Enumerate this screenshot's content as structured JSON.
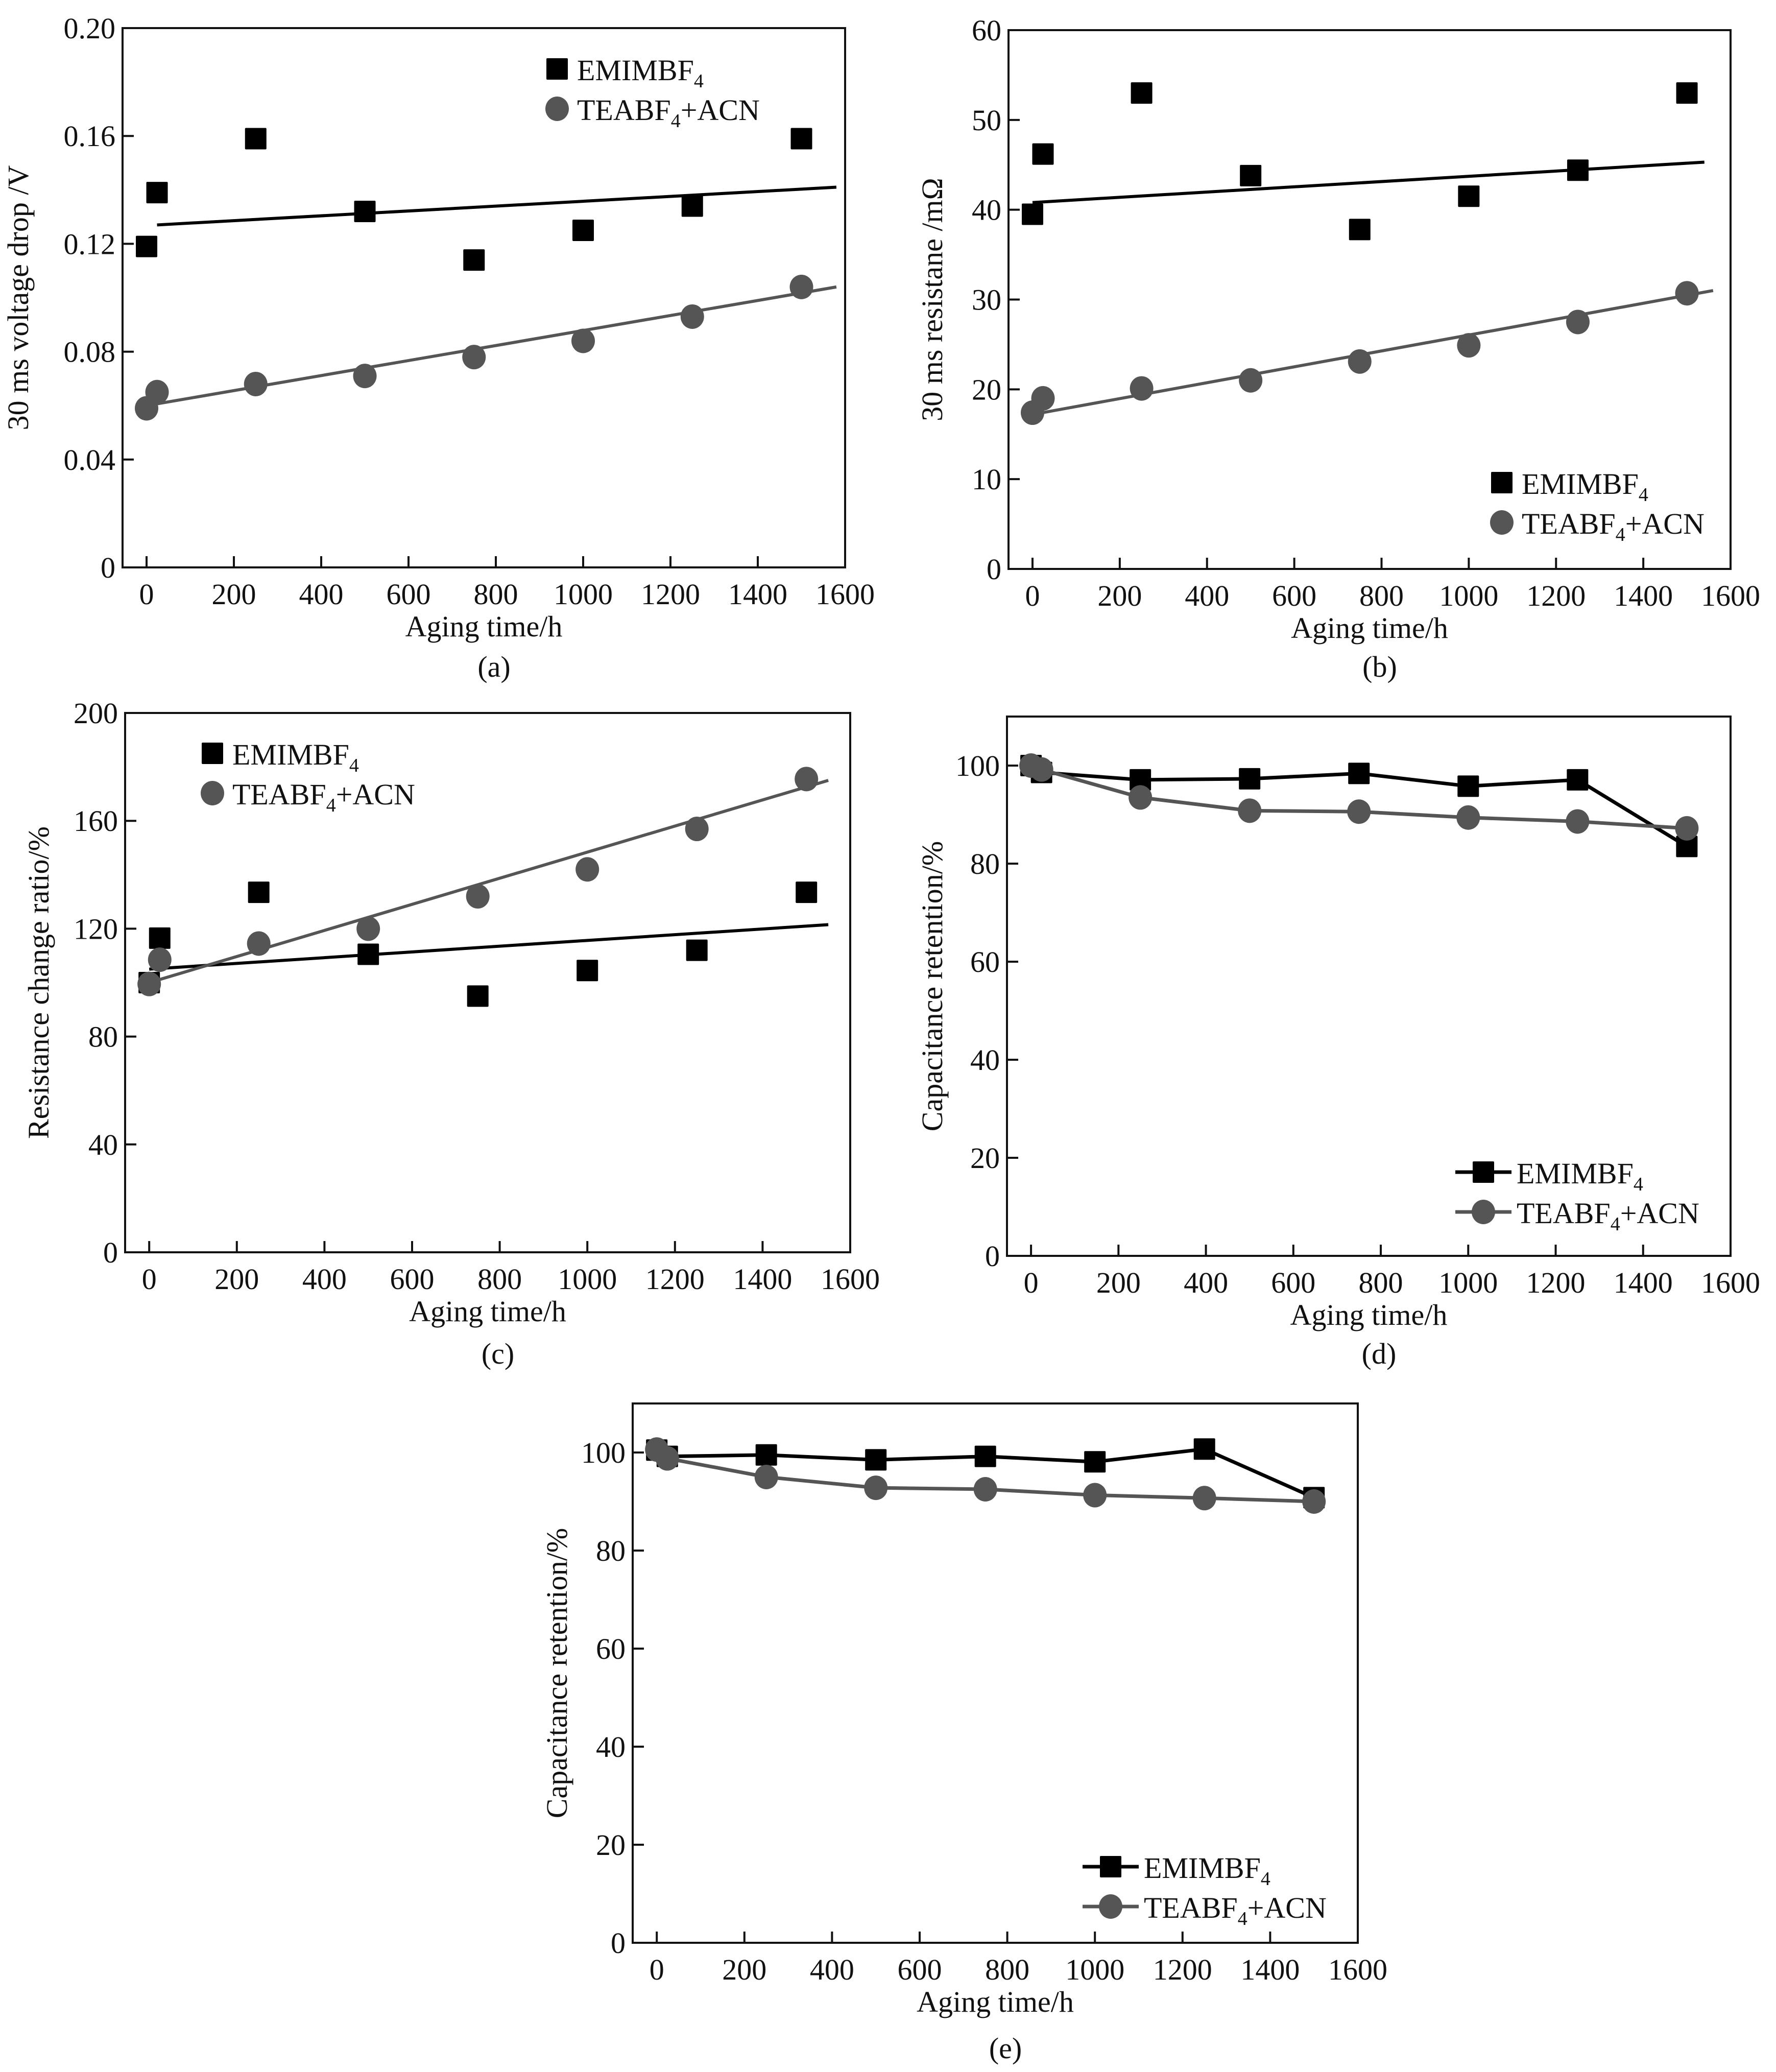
{
  "figure": {
    "colors": {
      "emim": "#000000",
      "tea": "#555555",
      "axis": "#111111"
    }
  },
  "chart_data": [
    {
      "id": "a",
      "panel_label": "(a)",
      "type": "scatter",
      "title": "",
      "xlabel": "Aging time/h",
      "ylabel": "30 ms voltage drop /V",
      "xlim": [
        -55,
        1600
      ],
      "ylim": [
        0,
        0.2
      ],
      "xticks": [
        0,
        200,
        400,
        600,
        800,
        1000,
        1200,
        1400,
        1600
      ],
      "xtick_labels": [
        "0",
        "200",
        "400",
        "600",
        "800",
        "1000",
        "1200",
        "1400",
        "1600"
      ],
      "yticks": [
        0,
        0.04,
        0.08,
        0.12,
        0.16,
        0.2
      ],
      "ytick_labels": [
        "0",
        "0.04",
        "0.08",
        "0.12",
        "0.16",
        "0.20"
      ],
      "grid": false,
      "legend_position": "top-right",
      "legend_style": "marker",
      "x": [
        0,
        24,
        250,
        500,
        750,
        1000,
        1250,
        1500
      ],
      "series": [
        {
          "name": "EMIMBF4",
          "label_main": "EMIMBF",
          "label_sub": "4",
          "label_tail": "",
          "marker": "square",
          "color": "#000000",
          "values": [
            0.119,
            0.139,
            0.159,
            0.132,
            0.114,
            0.125,
            0.134,
            0.159
          ],
          "fit": {
            "x": [
              24,
              1580
            ],
            "y": [
              0.127,
              0.141
            ]
          }
        },
        {
          "name": "TEABF4+ACN",
          "label_main": "TEABF",
          "label_sub": "4",
          "label_tail": "+ACN",
          "marker": "circle",
          "color": "#555555",
          "values": [
            0.059,
            0.065,
            0.068,
            0.071,
            0.078,
            0.084,
            0.093,
            0.104
          ],
          "fit": {
            "x": [
              0,
              1580
            ],
            "y": [
              0.06,
              0.104
            ]
          }
        }
      ]
    },
    {
      "id": "b",
      "panel_label": "(b)",
      "type": "scatter",
      "title": "",
      "xlabel": "Aging time/h",
      "ylabel": "30 ms resistane /mΩ",
      "xlim": [
        -55,
        1600
      ],
      "ylim": [
        0,
        60
      ],
      "xticks": [
        0,
        200,
        400,
        600,
        800,
        1000,
        1200,
        1400,
        1600
      ],
      "xtick_labels": [
        "0",
        "200",
        "400",
        "600",
        "800",
        "1000",
        "1200",
        "1400",
        "1600"
      ],
      "yticks": [
        0,
        10,
        20,
        30,
        40,
        50,
        60
      ],
      "ytick_labels": [
        "0",
        "10",
        "20",
        "30",
        "40",
        "50",
        "60"
      ],
      "grid": false,
      "legend_position": "bottom-right",
      "legend_style": "marker",
      "x": [
        0,
        24,
        250,
        500,
        750,
        1000,
        1250,
        1500
      ],
      "series": [
        {
          "name": "EMIMBF4",
          "label_main": "EMIMBF",
          "label_sub": "4",
          "label_tail": "",
          "marker": "square",
          "color": "#000000",
          "values": [
            39.5,
            46.2,
            53.0,
            43.8,
            37.8,
            41.5,
            44.4,
            53.0
          ],
          "fit": {
            "x": [
              0,
              1540
            ],
            "y": [
              40.8,
              45.3
            ]
          }
        },
        {
          "name": "TEABF4+ACN",
          "label_main": "TEABF",
          "label_sub": "4",
          "label_tail": "+ACN",
          "marker": "circle",
          "color": "#555555",
          "values": [
            17.4,
            19.0,
            20.1,
            21.0,
            23.1,
            24.9,
            27.5,
            30.7
          ],
          "fit": {
            "x": [
              0,
              1560
            ],
            "y": [
              17.2,
              31.0
            ]
          }
        }
      ]
    },
    {
      "id": "c",
      "panel_label": "(c)",
      "type": "scatter",
      "title": "",
      "xlabel": "Aging time/h",
      "ylabel": "Resistance change ratio/%",
      "xlim": [
        -55,
        1600
      ],
      "ylim": [
        0,
        200
      ],
      "xticks": [
        0,
        200,
        400,
        600,
        800,
        1000,
        1200,
        1400,
        1600
      ],
      "xtick_labels": [
        "0",
        "200",
        "400",
        "600",
        "800",
        "1000",
        "1200",
        "1400",
        "1600"
      ],
      "yticks": [
        0,
        40,
        80,
        120,
        160,
        200
      ],
      "ytick_labels": [
        "0",
        "40",
        "80",
        "120",
        "160",
        "200"
      ],
      "grid": false,
      "legend_position": "top-left",
      "legend_style": "marker",
      "x": [
        0,
        24,
        250,
        500,
        750,
        1000,
        1250,
        1500
      ],
      "series": [
        {
          "name": "EMIMBF4",
          "label_main": "EMIMBF",
          "label_sub": "4",
          "label_tail": "",
          "marker": "square",
          "color": "#000000",
          "values": [
            100.0,
            116.5,
            133.5,
            110.5,
            95.0,
            104.5,
            112.0,
            133.5
          ],
          "fit": {
            "x": [
              0,
              1550
            ],
            "y": [
              105.0,
              121.5
            ]
          }
        },
        {
          "name": "TEABF4+ACN",
          "label_main": "TEABF",
          "label_sub": "4",
          "label_tail": "+ACN",
          "marker": "circle",
          "color": "#555555",
          "values": [
            99.5,
            108.5,
            114.5,
            120.0,
            132.0,
            142.0,
            157.0,
            175.5
          ],
          "fit": {
            "x": [
              0,
              1550
            ],
            "y": [
              100.0,
              175.0
            ]
          }
        }
      ]
    },
    {
      "id": "d",
      "panel_label": "(d)",
      "type": "line",
      "title": "",
      "xlabel": "Aging time/h",
      "ylabel": "Capacitance retention/%",
      "xlim": [
        -55,
        1600
      ],
      "ylim": [
        0,
        110
      ],
      "xticks": [
        0,
        200,
        400,
        600,
        800,
        1000,
        1200,
        1400,
        1600
      ],
      "xtick_labels": [
        "0",
        "200",
        "400",
        "600",
        "800",
        "1000",
        "1200",
        "1400",
        "1600"
      ],
      "yticks": [
        0,
        20,
        40,
        60,
        80,
        100
      ],
      "ytick_labels": [
        "0",
        "20",
        "40",
        "60",
        "80",
        "100"
      ],
      "grid": false,
      "legend_position": "bottom-right",
      "legend_style": "line-marker",
      "x": [
        0,
        24,
        250,
        500,
        750,
        1000,
        1250,
        1500
      ],
      "series": [
        {
          "name": "EMIMBF4",
          "label_main": "EMIMBF",
          "label_sub": "4",
          "label_tail": "",
          "marker": "square",
          "color": "#000000",
          "values": [
            100.0,
            98.6,
            97.1,
            97.3,
            98.4,
            95.8,
            97.1,
            83.5
          ]
        },
        {
          "name": "TEABF4+ACN",
          "label_main": "TEABF",
          "label_sub": "4",
          "label_tail": "+ACN",
          "marker": "circle",
          "color": "#555555",
          "values": [
            100.0,
            99.2,
            93.5,
            90.8,
            90.6,
            89.4,
            88.6,
            87.2
          ]
        }
      ]
    },
    {
      "id": "e",
      "panel_label": "(e)",
      "type": "line",
      "title": "",
      "xlabel": "Aging time/h",
      "ylabel": "Capacitance retention/%",
      "xlim": [
        -55,
        1600
      ],
      "ylim": [
        0,
        110
      ],
      "xticks": [
        0,
        200,
        400,
        600,
        800,
        1000,
        1200,
        1400,
        1600
      ],
      "xtick_labels": [
        "0",
        "200",
        "400",
        "600",
        "800",
        "1000",
        "1200",
        "1400",
        "1600"
      ],
      "yticks": [
        0,
        20,
        40,
        60,
        80,
        100
      ],
      "ytick_labels": [
        "0",
        "20",
        "40",
        "60",
        "80",
        "100"
      ],
      "grid": false,
      "legend_position": "bottom-right",
      "legend_style": "line-marker",
      "x": [
        0,
        24,
        250,
        500,
        750,
        1000,
        1250,
        1500
      ],
      "series": [
        {
          "name": "EMIMBF4",
          "label_main": "EMIMBF",
          "label_sub": "4",
          "label_tail": "",
          "marker": "square",
          "color": "#000000",
          "values": [
            100.5,
            99.2,
            99.5,
            98.5,
            99.2,
            98.1,
            100.7,
            90.8
          ]
        },
        {
          "name": "TEABF4+ACN",
          "label_main": "TEABF",
          "label_sub": "4",
          "label_tail": "+ACN",
          "marker": "circle",
          "color": "#555555",
          "values": [
            100.6,
            98.8,
            95.0,
            92.8,
            92.5,
            91.3,
            90.7,
            90.0
          ]
        }
      ]
    }
  ]
}
